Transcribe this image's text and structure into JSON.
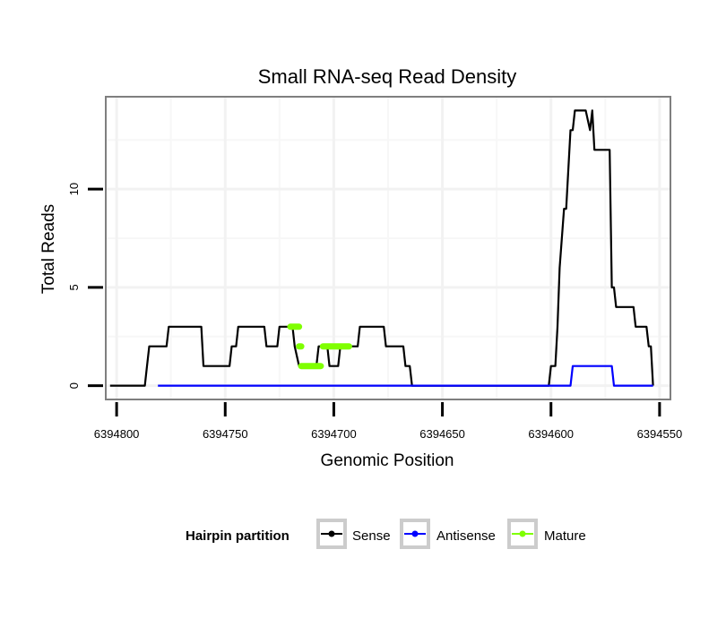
{
  "chart_data": {
    "type": "line",
    "title": "Small RNA-seq Read Density",
    "xlabel": "Genomic Position",
    "ylabel": "Total Reads",
    "xlim": [
      6394805,
      6394545
    ],
    "x_reversed": true,
    "ylim": [
      -0.7,
      14.7
    ],
    "x_ticks": [
      6394800,
      6394750,
      6394700,
      6394650,
      6394600,
      6394550
    ],
    "x_tick_labels": [
      "6394800",
      "6394750",
      "6394700",
      "6394650",
      "6394600",
      "6394550"
    ],
    "y_ticks": [
      0,
      5,
      10
    ],
    "y_tick_labels": [
      "0",
      "5",
      "10"
    ],
    "y_minor_grid": [
      2.5,
      7.5,
      12.5
    ],
    "x_minor_grid": [
      6394775,
      6394725,
      6394675,
      6394625,
      6394575
    ],
    "grid": true,
    "legend": {
      "title": "Hairpin partition",
      "position": "bottom",
      "entries": [
        {
          "label": "Sense",
          "color": "#000000"
        },
        {
          "label": "Antisense",
          "color": "#0000ff"
        },
        {
          "label": "Mature",
          "color": "#7fff00"
        }
      ]
    },
    "series": [
      {
        "name": "Sense",
        "color": "#000000",
        "points": [
          [
            6394803,
            0
          ],
          [
            6394787,
            0
          ],
          [
            6394786,
            1
          ],
          [
            6394785,
            2
          ],
          [
            6394777,
            2
          ],
          [
            6394776,
            3
          ],
          [
            6394761,
            3
          ],
          [
            6394760,
            1
          ],
          [
            6394748,
            1
          ],
          [
            6394747,
            2
          ],
          [
            6394745,
            2
          ],
          [
            6394744,
            3
          ],
          [
            6394732,
            3
          ],
          [
            6394731,
            2
          ],
          [
            6394726,
            2
          ],
          [
            6394725,
            3
          ],
          [
            6394719,
            3
          ],
          [
            6394718,
            2
          ],
          [
            6394716,
            1
          ],
          [
            6394708,
            1
          ],
          [
            6394707,
            2
          ],
          [
            6394703,
            2
          ],
          [
            6394702,
            1
          ],
          [
            6394698,
            1
          ],
          [
            6394697,
            2
          ],
          [
            6394689,
            2
          ],
          [
            6394688,
            3
          ],
          [
            6394677,
            3
          ],
          [
            6394676,
            2
          ],
          [
            6394668,
            2
          ],
          [
            6394667,
            1
          ],
          [
            6394665,
            1
          ],
          [
            6394664,
            0
          ],
          [
            6394601,
            0
          ],
          [
            6394600,
            1
          ],
          [
            6394598,
            1
          ],
          [
            6394597,
            3
          ],
          [
            6394596,
            6
          ],
          [
            6394594,
            9
          ],
          [
            6394593,
            9
          ],
          [
            6394591,
            13
          ],
          [
            6394590,
            13
          ],
          [
            6394589,
            14
          ],
          [
            6394584,
            14
          ],
          [
            6394582,
            13
          ],
          [
            6394581,
            14
          ],
          [
            6394580,
            12
          ],
          [
            6394573,
            12
          ],
          [
            6394572,
            5
          ],
          [
            6394571,
            5
          ],
          [
            6394570,
            4
          ],
          [
            6394562,
            4
          ],
          [
            6394561,
            3
          ],
          [
            6394556,
            3
          ],
          [
            6394555,
            2
          ],
          [
            6394554,
            2
          ],
          [
            6394553,
            0
          ]
        ]
      },
      {
        "name": "Antisense",
        "color": "#0000ff",
        "points": [
          [
            6394781,
            0
          ],
          [
            6394591,
            0
          ],
          [
            6394590,
            1
          ],
          [
            6394572,
            1
          ],
          [
            6394571,
            0
          ],
          [
            6394553,
            0
          ]
        ]
      },
      {
        "name": "Mature",
        "color": "#7fff00",
        "segments": [
          [
            [
              6394720,
              3
            ],
            [
              6394716,
              3
            ]
          ],
          [
            [
              6394716,
              2
            ],
            [
              6394715,
              2
            ]
          ],
          [
            [
              6394715,
              1
            ],
            [
              6394706,
              1
            ]
          ],
          [
            [
              6394705,
              2
            ],
            [
              6394693,
              2
            ]
          ]
        ]
      }
    ]
  }
}
